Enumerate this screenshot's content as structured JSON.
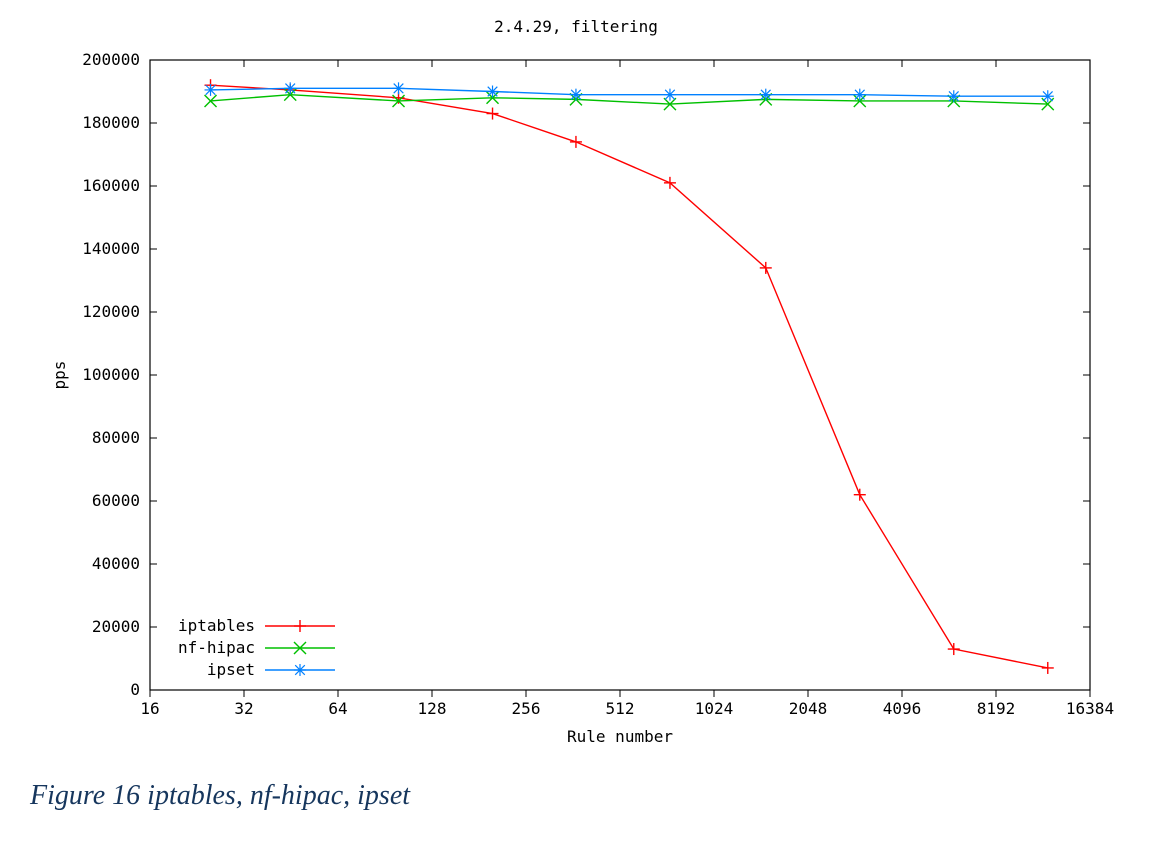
{
  "chart": {
    "type": "line",
    "title": "2.4.29, filtering",
    "title_fontsize": 16,
    "title_color": "#000000",
    "xlabel": "Rule number",
    "ylabel": "pps",
    "label_fontsize": 16,
    "label_color": "#000000",
    "background_color": "#ffffff",
    "border_color": "#000000",
    "tick_color": "#000000",
    "tick_fontsize": 16,
    "line_width": 1.4,
    "marker_size": 6,
    "x_scale": "log2",
    "x_ticks": [
      16,
      32,
      64,
      128,
      256,
      512,
      1024,
      2048,
      4096,
      8192,
      16384
    ],
    "xlim": [
      16,
      16384
    ],
    "y_scale": "linear",
    "y_ticks": [
      0,
      20000,
      40000,
      60000,
      80000,
      100000,
      120000,
      140000,
      160000,
      180000,
      200000
    ],
    "ylim": [
      0,
      200000
    ],
    "x_values": [
      25,
      45,
      100,
      200,
      370,
      740,
      1500,
      3000,
      6000,
      12000
    ],
    "series": [
      {
        "name": "iptables",
        "color": "#ff0000",
        "marker": "plus",
        "values": [
          192000,
          190500,
          188000,
          183000,
          174000,
          161000,
          134000,
          62000,
          13000,
          7000
        ]
      },
      {
        "name": "nf-hipac",
        "color": "#00c000",
        "marker": "x",
        "values": [
          187000,
          189000,
          187000,
          188000,
          187500,
          186000,
          187500,
          187000,
          187000,
          186000
        ]
      },
      {
        "name": "ipset",
        "color": "#0080ff",
        "marker": "star",
        "values": [
          190500,
          191000,
          191000,
          190000,
          189000,
          189000,
          189000,
          189000,
          188500,
          188500
        ]
      }
    ],
    "legend": {
      "position": "bottom-left",
      "fontsize": 16,
      "text_color": "#000000"
    }
  },
  "caption": "Figure 16 iptables, nf-hipac, ipset",
  "caption_fontsize": 28,
  "caption_color": "#16365d"
}
